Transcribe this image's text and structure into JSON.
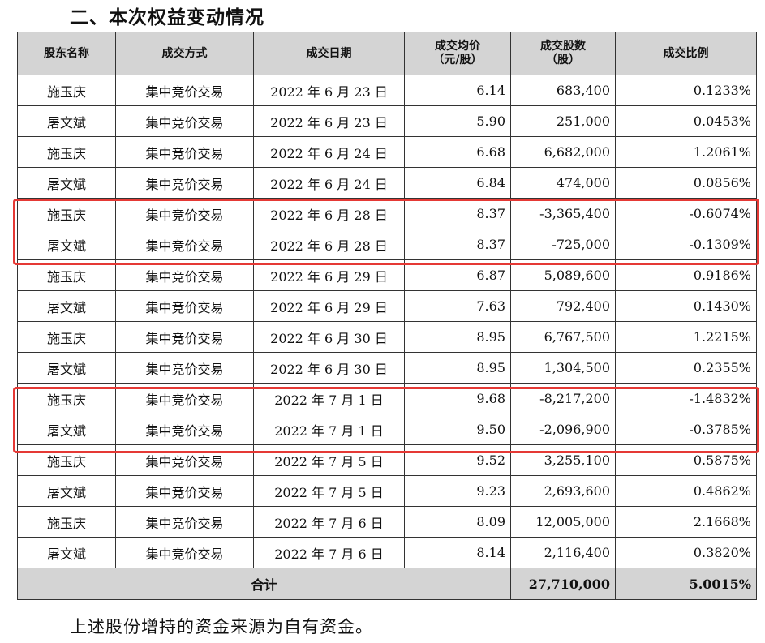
{
  "section_title": "二、本次权益变动情况",
  "table": {
    "headers": {
      "shareholder": "股东名称",
      "method": "成交方式",
      "date": "成交日期",
      "avg_price_line1": "成交均价",
      "avg_price_line2": "（元/股）",
      "shares_line1": "成交股数",
      "shares_line2": "（股）",
      "ratio": "成交比例"
    },
    "rows": [
      {
        "shareholder": "施玉庆",
        "method": "集中竞价交易",
        "date": "2022 年 6 月 23 日",
        "price": "6.14",
        "shares": "683,400",
        "ratio": "0.1233%"
      },
      {
        "shareholder": "屠文斌",
        "method": "集中竞价交易",
        "date": "2022 年 6 月 23 日",
        "price": "5.90",
        "shares": "251,000",
        "ratio": "0.0453%"
      },
      {
        "shareholder": "施玉庆",
        "method": "集中竞价交易",
        "date": "2022 年 6 月 24 日",
        "price": "6.68",
        "shares": "6,682,000",
        "ratio": "1.2061%"
      },
      {
        "shareholder": "屠文斌",
        "method": "集中竞价交易",
        "date": "2022 年 6 月 24 日",
        "price": "6.84",
        "shares": "474,000",
        "ratio": "0.0856%"
      },
      {
        "shareholder": "施玉庆",
        "method": "集中竞价交易",
        "date": "2022 年 6 月 28 日",
        "price": "8.37",
        "shares": "-3,365,400",
        "ratio": "-0.6074%"
      },
      {
        "shareholder": "屠文斌",
        "method": "集中竞价交易",
        "date": "2022 年 6 月 28 日",
        "price": "8.37",
        "shares": "-725,000",
        "ratio": "-0.1309%"
      },
      {
        "shareholder": "施玉庆",
        "method": "集中竞价交易",
        "date": "2022 年 6 月 29 日",
        "price": "6.87",
        "shares": "5,089,600",
        "ratio": "0.9186%"
      },
      {
        "shareholder": "屠文斌",
        "method": "集中竞价交易",
        "date": "2022 年 6 月 29 日",
        "price": "7.63",
        "shares": "792,400",
        "ratio": "0.1430%"
      },
      {
        "shareholder": "施玉庆",
        "method": "集中竞价交易",
        "date": "2022 年 6 月 30 日",
        "price": "8.95",
        "shares": "6,767,500",
        "ratio": "1.2215%"
      },
      {
        "shareholder": "屠文斌",
        "method": "集中竞价交易",
        "date": "2022 年 6 月 30 日",
        "price": "8.95",
        "shares": "1,304,500",
        "ratio": "0.2355%"
      },
      {
        "shareholder": "施玉庆",
        "method": "集中竞价交易",
        "date": "2022 年 7 月 1 日",
        "price": "9.68",
        "shares": "-8,217,200",
        "ratio": "-1.4832%"
      },
      {
        "shareholder": "屠文斌",
        "method": "集中竞价交易",
        "date": "2022 年 7 月 1 日",
        "price": "9.50",
        "shares": "-2,096,900",
        "ratio": "-0.3785%"
      },
      {
        "shareholder": "施玉庆",
        "method": "集中竞价交易",
        "date": "2022 年 7 月 5 日",
        "price": "9.52",
        "shares": "3,255,100",
        "ratio": "0.5875%"
      },
      {
        "shareholder": "屠文斌",
        "method": "集中竞价交易",
        "date": "2022 年 7 月 5 日",
        "price": "9.23",
        "shares": "2,693,600",
        "ratio": "0.4862%"
      },
      {
        "shareholder": "施玉庆",
        "method": "集中竞价交易",
        "date": "2022 年 7 月 6 日",
        "price": "8.09",
        "shares": "12,005,000",
        "ratio": "2.1668%"
      },
      {
        "shareholder": "屠文斌",
        "method": "集中竞价交易",
        "date": "2022 年 7 月 6 日",
        "price": "8.14",
        "shares": "2,116,400",
        "ratio": "0.3820%"
      }
    ],
    "total": {
      "label": "合计",
      "shares": "27,710,000",
      "ratio": "5.0015%"
    }
  },
  "highlight_color": "#e53935",
  "footnote": "上述股份增持的资金来源为自有资金。"
}
